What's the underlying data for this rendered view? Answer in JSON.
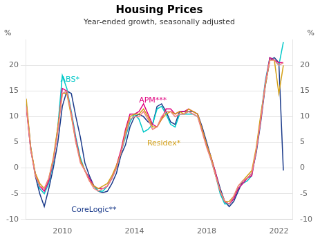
{
  "chart_data": {
    "type": "line",
    "title": "Housing Prices",
    "subtitle": "Year-ended growth, seasonally adjusted",
    "y_label": "%",
    "y2_label": "%",
    "xlim": [
      2008.0,
      2022.75
    ],
    "ylim": [
      -10,
      25
    ],
    "y2lim": [
      -10,
      25
    ],
    "xticks": [
      2010,
      2014,
      2018,
      2022
    ],
    "yticks": [
      -10,
      -5,
      0,
      5,
      10,
      15,
      20
    ],
    "y2ticks": [
      -10,
      -5,
      0,
      5,
      10,
      15,
      20
    ],
    "grid": true,
    "x": [
      2008.0,
      2008.25,
      2008.5,
      2008.75,
      2009.0,
      2009.25,
      2009.5,
      2009.75,
      2010.0,
      2010.25,
      2010.5,
      2010.75,
      2011.0,
      2011.25,
      2011.5,
      2011.75,
      2012.0,
      2012.25,
      2012.5,
      2012.75,
      2013.0,
      2013.25,
      2013.5,
      2013.75,
      2014.0,
      2014.25,
      2014.5,
      2014.75,
      2015.0,
      2015.25,
      2015.5,
      2015.75,
      2016.0,
      2016.25,
      2016.5,
      2016.75,
      2017.0,
      2017.25,
      2017.5,
      2017.75,
      2018.0,
      2018.25,
      2018.5,
      2018.75,
      2019.0,
      2019.25,
      2019.5,
      2019.75,
      2020.0,
      2020.25,
      2020.5,
      2020.75,
      2021.0,
      2021.25,
      2021.5,
      2021.75,
      2022.0,
      2022.25
    ],
    "series": [
      {
        "color": "#f08080",
        "values": [
          12.0,
          3.5,
          -1.5,
          -3.5,
          -4.0,
          -2.0,
          1.5,
          7.0,
          14.5,
          15.0,
          10.5,
          5.0,
          1.0,
          -0.5,
          -2.5,
          -4.0,
          -4.5,
          -4.0,
          -3.5,
          -2.0,
          0.0,
          3.0,
          6.5,
          9.5,
          10.0,
          10.0,
          11.0,
          9.5,
          7.5,
          8.0,
          10.0,
          11.0,
          11.0,
          10.0,
          10.5,
          10.5,
          11.0,
          10.5,
          10.0,
          7.0,
          4.0,
          1.5,
          -1.5,
          -4.5,
          -6.5,
          -7.0,
          -5.5,
          -3.5,
          -2.5,
          -2.0,
          -1.0,
          3.5,
          9.5,
          16.5,
          21.0,
          21.0,
          20.0,
          20.5
        ]
      },
      {
        "color": "#d4a017",
        "values": [
          13.5,
          4.0,
          -1.0,
          -3.0,
          -4.0,
          -2.0,
          2.0,
          8.0,
          14.5,
          14.5,
          10.0,
          5.0,
          1.5,
          -0.5,
          -2.5,
          -3.5,
          -4.0,
          -3.5,
          -3.0,
          -1.5,
          0.5,
          3.0,
          7.0,
          10.0,
          10.5,
          10.5,
          11.5,
          10.0,
          8.0,
          8.0,
          9.5,
          10.5,
          11.0,
          10.5,
          11.0,
          10.5,
          11.5,
          11.0,
          10.5,
          7.5,
          4.5,
          2.0,
          -1.5,
          -4.5,
          -6.5,
          -6.5,
          -5.5,
          -3.5,
          -2.5,
          -1.5,
          -0.5,
          4.0,
          10.5,
          16.0,
          21.0,
          21.0,
          14.5,
          20.0
        ]
      },
      {
        "color": "#e0007f",
        "values": [
          12.0,
          3.5,
          -1.0,
          -3.5,
          -4.5,
          -2.5,
          1.5,
          7.5,
          15.5,
          15.0,
          10.5,
          5.5,
          1.5,
          -0.5,
          -2.0,
          -3.5,
          -4.0,
          -4.0,
          -3.5,
          -2.0,
          0.5,
          3.5,
          7.5,
          10.5,
          10.5,
          11.0,
          12.5,
          10.5,
          8.5,
          8.0,
          9.5,
          11.5,
          11.5,
          10.5,
          11.0,
          11.0,
          11.5,
          11.0,
          10.5,
          7.5,
          4.5,
          2.0,
          -1.0,
          -4.5,
          -6.5,
          -7.0,
          -6.0,
          -4.0,
          -3.0,
          -2.0,
          -1.5,
          3.5,
          9.5,
          16.5,
          21.5,
          21.0,
          20.5,
          20.5
        ]
      },
      {
        "color": "#00c8c8",
        "values": [
          12.5,
          3.5,
          -1.0,
          -4.0,
          -5.0,
          -3.0,
          1.0,
          8.0,
          18.0,
          15.5,
          11.0,
          6.0,
          2.0,
          -0.5,
          -2.0,
          -3.5,
          -4.5,
          -4.5,
          -3.5,
          -2.0,
          0.0,
          3.0,
          6.0,
          9.0,
          10.5,
          9.5,
          7.0,
          7.5,
          8.5,
          11.5,
          12.0,
          10.5,
          8.5,
          8.0,
          10.5,
          10.5,
          10.5,
          10.5,
          10.0,
          7.5,
          4.5,
          1.5,
          -1.5,
          -5.0,
          -7.0,
          -7.0,
          -6.0,
          -4.0,
          -3.0,
          -2.5,
          -1.5,
          3.5,
          10.0,
          17.0,
          21.5,
          21.0,
          20.0,
          24.5
        ]
      },
      {
        "color": "#1a3a8a",
        "values": [
          12.5,
          4.0,
          -1.5,
          -5.0,
          -7.5,
          -4.0,
          0.0,
          5.0,
          12.0,
          15.0,
          14.5,
          10.0,
          6.0,
          1.0,
          -1.5,
          -3.5,
          -4.5,
          -4.8,
          -4.5,
          -3.0,
          -1.0,
          2.5,
          4.5,
          8.0,
          10.0,
          10.5,
          10.0,
          9.0,
          8.5,
          12.0,
          12.5,
          11.0,
          9.0,
          8.5,
          11.0,
          11.0,
          11.0,
          11.0,
          10.5,
          8.0,
          5.0,
          2.0,
          -1.0,
          -4.0,
          -6.5,
          -7.5,
          -6.5,
          -4.5,
          -2.5,
          -2.0,
          -1.0,
          3.0,
          9.0,
          16.0,
          21.0,
          21.5,
          20.5,
          -0.5
        ]
      }
    ],
    "annotations": [
      {
        "text": "ABS*",
        "x": 2009.9,
        "y": 17.2,
        "color": "#00c8c8"
      },
      {
        "text": "APM***",
        "x": 2014.25,
        "y": 13.2,
        "color": "#e0007f"
      },
      {
        "text": "Residex*",
        "x": 2014.7,
        "y": 4.8,
        "color": "#d4a017"
      },
      {
        "text": "CoreLogic**",
        "x": 2010.5,
        "y": -8.2,
        "color": "#1a3a8a"
      }
    ]
  }
}
